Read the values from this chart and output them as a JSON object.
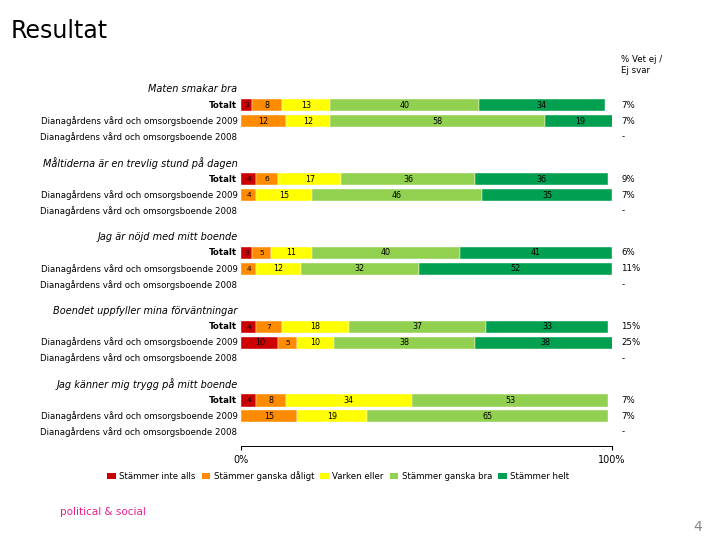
{
  "title": "Resultat",
  "col_header": "% Vet ej /\nEj svar",
  "sections": [
    {
      "heading": "Maten smakar bra",
      "rows": [
        {
          "label": "Totalt",
          "values": [
            3,
            8,
            13,
            40,
            34
          ],
          "vet_ej": "7%"
        },
        {
          "label": "Dianagårdens vård och omsorgsboende 2009",
          "values": [
            0,
            12,
            12,
            58,
            19
          ],
          "vet_ej": "7%"
        },
        {
          "label": "Dianagårdens vård och omsorgsboende 2008",
          "values": null,
          "vet_ej": "-"
        }
      ]
    },
    {
      "heading": "Måltiderna är en trevlig stund på dagen",
      "rows": [
        {
          "label": "Totalt",
          "values": [
            4,
            6,
            17,
            36,
            36
          ],
          "vet_ej": "9%"
        },
        {
          "label": "Dianagårdens vård och omsorgsboende 2009",
          "values": [
            0,
            4,
            15,
            46,
            35
          ],
          "vet_ej": "7%"
        },
        {
          "label": "Dianagårdens vård och omsorgsboende 2008",
          "values": null,
          "vet_ej": "-"
        }
      ]
    },
    {
      "heading": "Jag är nöjd med mitt boende",
      "rows": [
        {
          "label": "Totalt",
          "values": [
            3,
            5,
            11,
            40,
            41
          ],
          "vet_ej": "6%"
        },
        {
          "label": "Dianagårdens vård och omsorgsboende 2009",
          "values": [
            0,
            4,
            12,
            32,
            52
          ],
          "vet_ej": "11%"
        },
        {
          "label": "Dianagårdens vård och omsorgsboende 2008",
          "values": null,
          "vet_ej": "-"
        }
      ]
    },
    {
      "heading": "Boendet uppfyller mina förväntningar",
      "rows": [
        {
          "label": "Totalt",
          "values": [
            4,
            7,
            18,
            37,
            33
          ],
          "vet_ej": "15%"
        },
        {
          "label": "Dianagårdens vård och omsorgsboende 2009",
          "values": [
            10,
            5,
            10,
            38,
            38
          ],
          "vet_ej": "25%"
        },
        {
          "label": "Dianagårdens vård och omsorgsboende 2008",
          "values": null,
          "vet_ej": "-"
        }
      ]
    },
    {
      "heading": "Jag känner mig trygg på mitt boende",
      "rows": [
        {
          "label": "Totalt",
          "values": [
            4,
            8,
            34,
            53,
            0
          ],
          "vet_ej": "7%"
        },
        {
          "label": "Dianagårdens vård och omsorgsboende 2009",
          "values": [
            0,
            15,
            19,
            65,
            0
          ],
          "vet_ej": "7%"
        },
        {
          "label": "Dianagårdens vård och omsorgsboende 2008",
          "values": null,
          "vet_ej": "-"
        }
      ]
    }
  ],
  "colors": [
    "#cc0000",
    "#ff8c00",
    "#ffff00",
    "#92d050",
    "#00a050"
  ],
  "legend_labels": [
    "Stämmer inte alls",
    "Stämmer ganska dåligt",
    "Varken eller",
    "Stämmer ganska bra",
    "Stämmer helt"
  ],
  "bar_height": 0.55,
  "label_fontsize": 6.2,
  "bar_label_fontsize": 5.8,
  "heading_fontsize": 7.0,
  "background_color": "#ffffff",
  "tns_pink": "#e91e8c",
  "tns_text": "tns political & social"
}
